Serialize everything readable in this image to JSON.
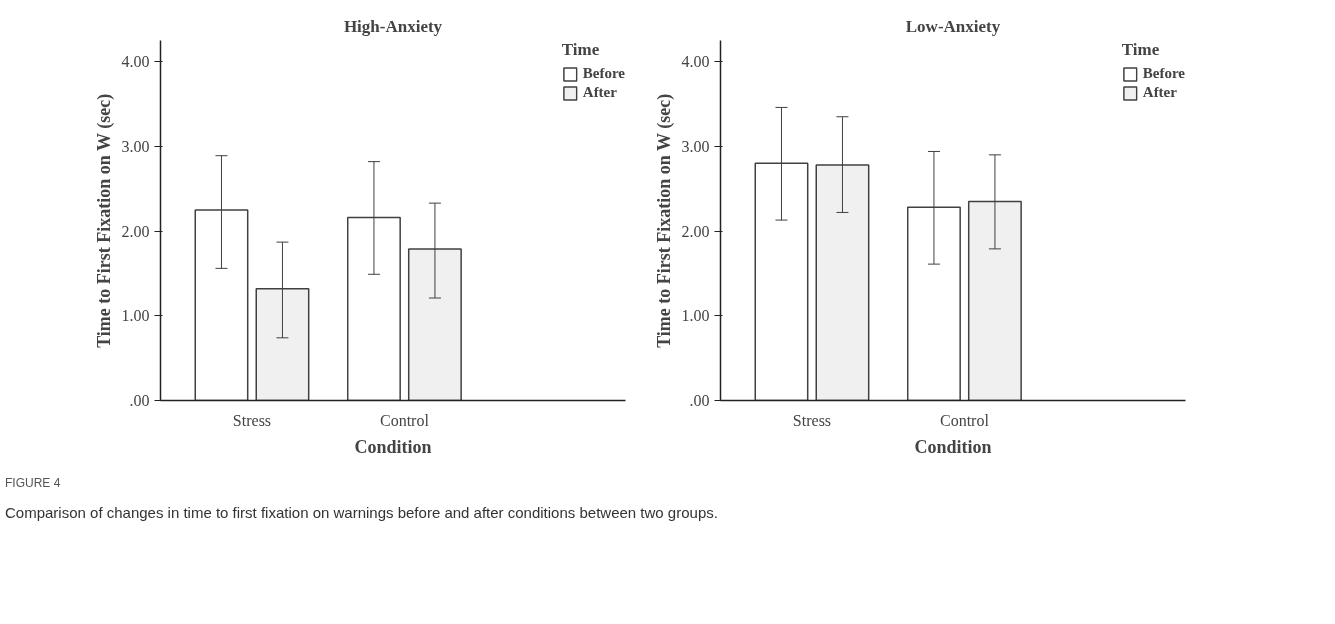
{
  "chart_data": [
    {
      "type": "bar",
      "title": "High-Anxiety",
      "xlabel": "Condition",
      "ylabel": "Time to First Fixation on W (sec)",
      "legend_title": "Time",
      "legend": "top right",
      "categories": [
        "Stress",
        "Control"
      ],
      "ylim": [
        0,
        4.25
      ],
      "yticks": [
        {
          "value": 0,
          "label": ".00"
        },
        {
          "value": 1,
          "label": "1.00"
        },
        {
          "value": 2,
          "label": "2.00"
        },
        {
          "value": 3,
          "label": "3.00"
        },
        {
          "value": 4,
          "label": "4.00"
        }
      ],
      "series": [
        {
          "name": "Before",
          "color": "#ffffff",
          "values": [
            2.25,
            2.16
          ],
          "errors": [
            [
              1.56,
              2.89
            ],
            [
              1.49,
              2.82
            ]
          ]
        },
        {
          "name": "After",
          "color": "#f0f0f0",
          "values": [
            1.32,
            1.79
          ],
          "errors": [
            [
              0.74,
              1.87
            ],
            [
              1.21,
              2.33
            ]
          ]
        }
      ],
      "annotations": [
        "FIGURE 4",
        "Comparison of changes in time to first fixation on warnings before and after conditions between two groups."
      ]
    },
    {
      "type": "bar",
      "title": "Low-Anxiety",
      "xlabel": "Condition",
      "ylabel": "Time to First Fixation on W (sec)",
      "legend_title": "Time",
      "legend": "top right",
      "categories": [
        "Stress",
        "Control"
      ],
      "ylim": [
        0,
        4.25
      ],
      "yticks": [
        {
          "value": 0,
          "label": ".00"
        },
        {
          "value": 1,
          "label": "1.00"
        },
        {
          "value": 2,
          "label": "2.00"
        },
        {
          "value": 3,
          "label": "3.00"
        },
        {
          "value": 4,
          "label": "4.00"
        }
      ],
      "series": [
        {
          "name": "Before",
          "color": "#ffffff",
          "values": [
            2.8,
            2.28
          ],
          "errors": [
            [
              2.13,
              3.46
            ],
            [
              1.61,
              2.94
            ]
          ]
        },
        {
          "name": "After",
          "color": "#f0f0f0",
          "values": [
            2.78,
            2.35
          ],
          "errors": [
            [
              2.22,
              3.35
            ],
            [
              1.79,
              2.9
            ]
          ]
        }
      ]
    }
  ]
}
